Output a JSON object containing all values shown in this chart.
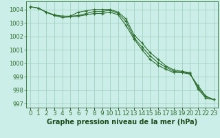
{
  "title": "Graphe pression niveau de la mer (hPa)",
  "background_color": "#cceee8",
  "grid_color": "#99ccbb",
  "line_color": "#2d6e2d",
  "x_hours": [
    0,
    1,
    2,
    3,
    4,
    5,
    6,
    7,
    8,
    9,
    10,
    11,
    12,
    13,
    14,
    15,
    16,
    17,
    18,
    19,
    20,
    21,
    22,
    23
  ],
  "series1": [
    1004.2,
    1004.1,
    1003.8,
    1003.6,
    1003.5,
    1003.5,
    1003.8,
    1003.9,
    1004.0,
    1004.0,
    1004.0,
    1003.8,
    1003.3,
    1002.1,
    1001.5,
    1000.8,
    1000.3,
    999.8,
    999.5,
    999.4,
    999.3,
    998.1,
    997.4,
    997.3
  ],
  "series2": [
    1004.2,
    1004.1,
    1003.8,
    1003.55,
    1003.4,
    1003.45,
    1003.5,
    1003.6,
    1003.7,
    1003.7,
    1003.8,
    1003.6,
    1002.8,
    1001.8,
    1001.0,
    1000.3,
    999.85,
    999.55,
    999.3,
    999.3,
    999.2,
    998.35,
    997.55,
    997.3
  ],
  "series3": [
    1004.2,
    1004.1,
    1003.8,
    1003.55,
    1003.5,
    1003.5,
    1003.55,
    1003.7,
    1003.85,
    1003.85,
    1003.95,
    1003.7,
    1003.1,
    1001.9,
    1001.2,
    1000.55,
    1000.05,
    999.7,
    999.4,
    999.35,
    999.25,
    998.2,
    997.5,
    997.3
  ],
  "ylim": [
    996.7,
    1004.6
  ],
  "yticks": [
    997,
    998,
    999,
    1000,
    1001,
    1002,
    1003,
    1004
  ],
  "tick_color": "#2d6e2d",
  "label_color": "#1a4a1a",
  "xlabel_fontsize": 6.5,
  "ylabel_fontsize": 6.0,
  "title_fontsize": 7.0
}
